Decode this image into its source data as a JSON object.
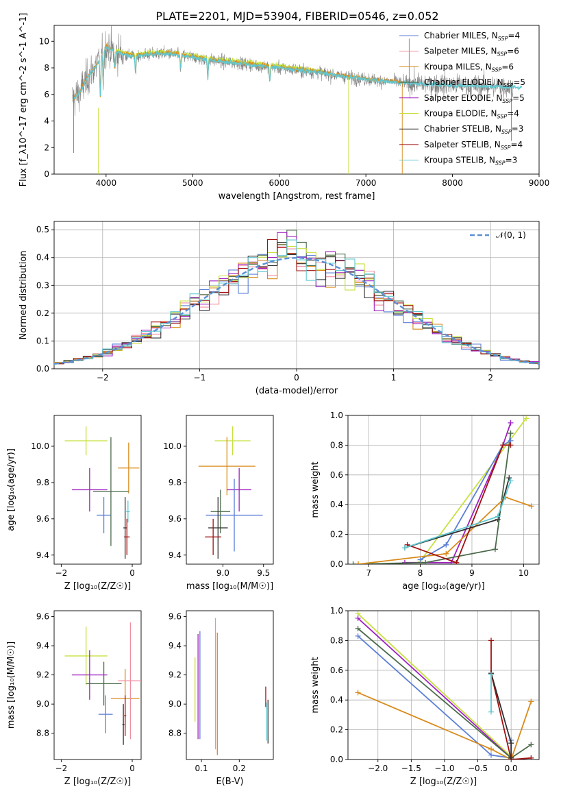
{
  "title": "PLATE=2201, MJD=53904, FIBERID=0546, z=0.052",
  "colors": {
    "Chabrier MILES": "#5b7fd6",
    "Salpeter MILES": "#f08fa0",
    "Kroupa MILES": "#d98a1a",
    "Chabrier ELODIE": "#4a6a4a",
    "Salpeter ELODIE": "#a020c0",
    "Kroupa ELODIE": "#c8e040",
    "Chabrier STELIB": "#303030",
    "Salpeter STELIB": "#a01010",
    "Kroupa STELIB": "#60c8d0",
    "data": "#808080",
    "gauss": "#5b8fd6",
    "fitA": "#e07a30",
    "fitB": "#70d8e0"
  },
  "chart_data": [
    {
      "type": "line",
      "panel": "spectrum",
      "xlabel": "wavelength [Angstrom, rest frame]",
      "ylabel": "Flux [f_λ10^-17 erg cm^-2 s^-1 A^-1]",
      "xlim": [
        3400,
        9000
      ],
      "ylim": [
        0,
        11.2
      ],
      "xticks": [
        4000,
        5000,
        6000,
        7000,
        8000,
        9000
      ],
      "yticks": [
        0,
        2,
        4,
        6,
        8,
        10
      ],
      "legend_position": "top-right",
      "legend": [
        "Chabrier MILES, N_SSP=4",
        "Salpeter MILES, N_SSP=6",
        "Kroupa MILES, N_SSP=6",
        "Chabrier ELODIE, N_SSP=5",
        "Salpeter ELODIE, N_SSP=5",
        "Kroupa ELODIE, N_SSP=4",
        "Chabrier STELIB, N_SSP=3",
        "Salpeter STELIB, N_SSP=4",
        "Kroupa STELIB, N_SSP=3"
      ],
      "continuum": {
        "x": [
          3620,
          3700,
          3800,
          3900,
          4000,
          4100,
          4300,
          4500,
          4700,
          5000,
          5300,
          5600,
          6000,
          6400,
          6800,
          7200,
          7600,
          8000,
          8500,
          8900
        ],
        "y": [
          5.6,
          6.2,
          7.4,
          8.3,
          9.6,
          9.2,
          8.9,
          9.0,
          9.1,
          8.8,
          8.5,
          8.3,
          8.0,
          7.7,
          7.3,
          7.0,
          6.8,
          6.7,
          6.6,
          6.5
        ]
      },
      "absorption_lines": [
        {
          "x": 3934,
          "depth": 3.0
        },
        {
          "x": 3968,
          "depth": 2.0
        },
        {
          "x": 4102,
          "depth": 1.3
        },
        {
          "x": 4340,
          "depth": 1.3
        },
        {
          "x": 4861,
          "depth": 1.0
        },
        {
          "x": 5175,
          "depth": 1.4
        },
        {
          "x": 5890,
          "depth": 1.1
        }
      ],
      "grid": false
    },
    {
      "type": "step",
      "panel": "residuals",
      "xlabel": "(data-model)/error",
      "ylabel": "Normed distribution",
      "xlim": [
        -2.5,
        2.5
      ],
      "ylim": [
        0,
        0.53
      ],
      "xticks": [
        -2,
        -1,
        0,
        1,
        2
      ],
      "yticks": [
        0.0,
        0.1,
        0.2,
        0.3,
        0.4,
        0.5
      ],
      "gauss_label": "𝒩(0, 1)",
      "legend_position": "top-right",
      "bin_width": 0.1,
      "grid": true
    },
    {
      "type": "scatter",
      "panel": "age_vs_Z",
      "xlabel": "Z [log₁₀(Z/Z☉)]",
      "ylabel": "age  [log₁₀(age/yr)]",
      "xlim": [
        -2.2,
        0.25
      ],
      "ylim": [
        9.35,
        10.17
      ],
      "xticks": [
        -2,
        0
      ],
      "yticks": [
        9.4,
        9.6,
        9.8,
        10.0
      ],
      "points": [
        {
          "model": "Kroupa ELODIE",
          "x": -1.3,
          "xerr": 0.6,
          "y": 10.03,
          "yerr": 0.08
        },
        {
          "model": "Chabrier MILES",
          "x": -0.8,
          "xerr": 0.2,
          "y": 9.62,
          "yerr": 0.1
        },
        {
          "model": "Kroupa MILES",
          "x": -0.1,
          "xerr": 0.3,
          "y": 9.88,
          "yerr": 0.14
        },
        {
          "model": "Salpeter ELODIE",
          "x": -1.2,
          "xerr": 0.5,
          "y": 9.76,
          "yerr": 0.12
        },
        {
          "model": "Chabrier ELODIE",
          "x": -0.6,
          "xerr": 0.5,
          "y": 9.75,
          "yerr": 0.3
        },
        {
          "model": "Chabrier STELIB",
          "x": -0.2,
          "xerr": 0.05,
          "y": 9.55,
          "yerr": 0.17
        },
        {
          "model": "Salpeter STELIB",
          "x": -0.15,
          "xerr": 0.08,
          "y": 9.5,
          "yerr": 0.1
        },
        {
          "model": "Kroupa STELIB",
          "x": -0.12,
          "xerr": 0.05,
          "y": 9.64,
          "yerr": 0.06
        }
      ]
    },
    {
      "type": "scatter",
      "panel": "age_vs_mass",
      "xlabel": "mass [log₁₀(M/M☉)]",
      "xlim": [
        8.55,
        9.62
      ],
      "ylim": [
        9.35,
        10.17
      ],
      "xticks": [
        9.0,
        9.5
      ],
      "yticks": [
        9.4,
        9.6,
        9.8,
        10.0
      ],
      "points": [
        {
          "model": "Kroupa ELODIE",
          "x": 9.12,
          "xerr": 0.22,
          "y": 10.03,
          "yerr": 0.08
        },
        {
          "model": "Kroupa MILES",
          "x": 9.05,
          "xerr": 0.35,
          "y": 9.89,
          "yerr": 0.16
        },
        {
          "model": "Salpeter ELODIE",
          "x": 9.2,
          "xerr": 0.15,
          "y": 9.76,
          "yerr": 0.12
        },
        {
          "model": "Chabrier MILES",
          "x": 9.14,
          "xerr": 0.35,
          "y": 9.62,
          "yerr": 0.2
        },
        {
          "model": "Chabrier ELODIE",
          "x": 8.97,
          "xerr": 0.12,
          "y": 9.64,
          "yerr": 0.12
        },
        {
          "model": "Chabrier STELIB",
          "x": 8.94,
          "xerr": 0.12,
          "y": 9.55,
          "yerr": 0.17
        },
        {
          "model": "Salpeter STELIB",
          "x": 8.88,
          "xerr": 0.1,
          "y": 9.5,
          "yerr": 0.1
        }
      ]
    },
    {
      "type": "line",
      "panel": "weight_vs_age",
      "xlabel": "age  [log₁₀(age/yr)]",
      "ylabel": "mass weight",
      "xlim": [
        6.6,
        10.3
      ],
      "ylim": [
        0,
        1.0
      ],
      "xticks": [
        7,
        8,
        9,
        10
      ],
      "yticks": [
        0.0,
        0.2,
        0.4,
        0.6,
        0.8,
        1.0
      ],
      "grid": true,
      "series": [
        {
          "model": "Kroupa ELODIE",
          "x": [
            8.0,
            10.05
          ],
          "y": [
            0.02,
            0.98
          ]
        },
        {
          "model": "Salpeter ELODIE",
          "x": [
            7.7,
            8.6,
            9.6,
            9.75
          ],
          "y": [
            0.01,
            0.01,
            0.8,
            0.95
          ]
        },
        {
          "model": "Chabrier ELODIE",
          "x": [
            6.7,
            8.1,
            9.45,
            9.75
          ],
          "y": [
            0.0,
            0.01,
            0.1,
            0.88
          ]
        },
        {
          "model": "Chabrier MILES",
          "x": [
            8.0,
            8.5,
            9.6,
            9.75
          ],
          "y": [
            0.03,
            0.13,
            0.8,
            0.83
          ]
        },
        {
          "model": "Kroupa MILES",
          "x": [
            6.8,
            8.5,
            9.65,
            10.15
          ],
          "y": [
            0.0,
            0.07,
            0.45,
            0.39
          ]
        },
        {
          "model": "Salpeter STELIB",
          "x": [
            7.75,
            8.7,
            9.6,
            9.75
          ],
          "y": [
            0.13,
            0.01,
            0.8,
            0.8
          ]
        },
        {
          "model": "Chabrier STELIB",
          "x": [
            7.7,
            9.5,
            9.72
          ],
          "y": [
            0.11,
            0.3,
            0.58
          ]
        },
        {
          "model": "Kroupa STELIB",
          "x": [
            7.7,
            9.5,
            9.75
          ],
          "y": [
            0.11,
            0.32,
            0.56
          ]
        }
      ]
    },
    {
      "type": "scatter",
      "panel": "mass_vs_Z",
      "xlabel": "Z [log₁₀(Z/Z☉)]",
      "ylabel": "mass [log₁₀(M/M☉)]",
      "xlim": [
        -2.2,
        0.25
      ],
      "ylim": [
        8.62,
        9.64
      ],
      "xticks": [
        -2,
        0
      ],
      "yticks": [
        8.8,
        9.0,
        9.2,
        9.4,
        9.6
      ],
      "points": [
        {
          "model": "Kroupa ELODIE",
          "x": -1.3,
          "xerr": 0.6,
          "y": 9.33,
          "yerr": 0.2
        },
        {
          "model": "Salpeter ELODIE",
          "x": -1.2,
          "xerr": 0.5,
          "y": 9.2,
          "yerr": 0.17
        },
        {
          "model": "Chabrier ELODIE",
          "x": -0.8,
          "xerr": 0.5,
          "y": 9.14,
          "yerr": 0.15
        },
        {
          "model": "Chabrier MILES",
          "x": -0.75,
          "xerr": 0.2,
          "y": 8.93,
          "yerr": 0.13
        },
        {
          "model": "Kroupa MILES",
          "x": -0.2,
          "xerr": 0.4,
          "y": 9.04,
          "yerr": 0.2
        },
        {
          "model": "Salpeter MILES",
          "x": -0.05,
          "xerr": 0.35,
          "y": 9.16,
          "yerr": 0.4
        },
        {
          "model": "Salpeter STELIB",
          "x": -0.2,
          "xerr": 0.03,
          "y": 8.92,
          "yerr": 0.14
        },
        {
          "model": "Chabrier STELIB",
          "x": -0.25,
          "xerr": 0.03,
          "y": 8.86,
          "yerr": 0.14
        }
      ]
    },
    {
      "type": "errorbar",
      "panel": "mass_vs_ebv",
      "xlabel": "E(B-V)",
      "xlim": [
        0.06,
        0.29
      ],
      "ylim": [
        8.62,
        9.64
      ],
      "xticks": [
        0.1,
        0.2
      ],
      "yticks": [
        8.8,
        9.0,
        9.2,
        9.4,
        9.6
      ],
      "points": [
        {
          "model": "Kroupa ELODIE",
          "x": 0.083,
          "y": 9.1,
          "yerr": 0.22
        },
        {
          "model": "Salpeter ELODIE",
          "x": 0.091,
          "y": 9.12,
          "yerr": 0.36
        },
        {
          "model": "Chabrier MILES",
          "x": 0.096,
          "y": 9.13,
          "yerr": 0.37
        },
        {
          "model": "Salpeter MILES",
          "x": 0.137,
          "y": 9.14,
          "yerr": 0.45
        },
        {
          "model": "Kroupa MILES",
          "x": 0.142,
          "y": 9.07,
          "yerr": 0.42
        },
        {
          "model": "Salpeter STELIB",
          "x": 0.27,
          "y": 9.05,
          "yerr": 0.07
        },
        {
          "model": "Kroupa STELIB",
          "x": 0.272,
          "y": 8.88,
          "yerr": 0.13
        },
        {
          "model": "Chabrier STELIB",
          "x": 0.276,
          "y": 8.88,
          "yerr": 0.15
        }
      ]
    },
    {
      "type": "line",
      "panel": "weight_vs_Z",
      "xlabel": "Z [log₁₀(Z/Z☉)]",
      "ylabel": "mass weight",
      "xlim": [
        -2.45,
        0.42
      ],
      "ylim": [
        0,
        1.0
      ],
      "xticks": [
        -2.0,
        -1.5,
        -1.0,
        -0.5,
        0.0
      ],
      "yticks": [
        0.0,
        0.2,
        0.4,
        0.6,
        0.8,
        1.0
      ],
      "grid": true,
      "series": [
        {
          "model": "Kroupa ELODIE",
          "x": [
            -2.3,
            0.0
          ],
          "y": [
            0.98,
            0.02
          ]
        },
        {
          "model": "Salpeter ELODIE",
          "x": [
            -2.3,
            0.0
          ],
          "y": [
            0.95,
            0.01
          ]
        },
        {
          "model": "Chabrier ELODIE",
          "x": [
            -2.3,
            0.0,
            0.3
          ],
          "y": [
            0.88,
            0.01,
            0.1
          ]
        },
        {
          "model": "Chabrier MILES",
          "x": [
            -2.3,
            -0.3,
            0.0,
            0.0
          ],
          "y": [
            0.83,
            0.03,
            0.01,
            0.13
          ]
        },
        {
          "model": "Kroupa MILES",
          "x": [
            -2.3,
            -0.3,
            0.0,
            0.3
          ],
          "y": [
            0.45,
            0.07,
            0.0,
            0.39
          ]
        },
        {
          "model": "Salpeter STELIB",
          "x": [
            -0.3,
            -0.3,
            0.0,
            0.3
          ],
          "y": [
            0.8,
            0.58,
            0.0,
            0.01
          ]
        },
        {
          "model": "Chabrier STELIB",
          "x": [
            -0.3,
            0.0,
            0.0
          ],
          "y": [
            0.58,
            0.11,
            0.01
          ]
        },
        {
          "model": "Kroupa STELIB",
          "x": [
            -0.3,
            -0.3
          ],
          "y": [
            0.32,
            0.57
          ]
        }
      ]
    }
  ]
}
